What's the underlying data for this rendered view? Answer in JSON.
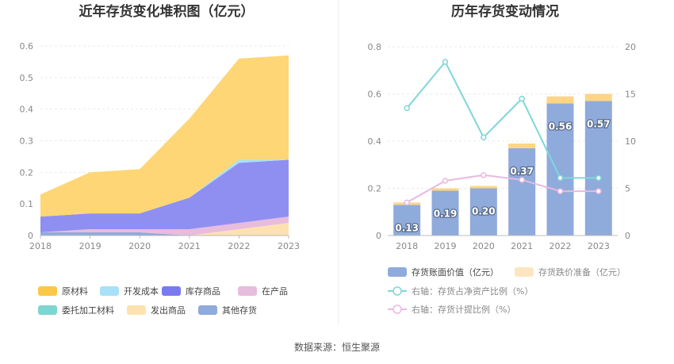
{
  "source": "数据来源：恒生聚源",
  "chart_data": [
    {
      "type": "area",
      "stacked": true,
      "title": "近年存货变化堆积图（亿元）",
      "x": [
        "2018",
        "2019",
        "2020",
        "2021",
        "2022",
        "2023"
      ],
      "ylim": [
        0,
        0.6
      ],
      "yticks": [
        "0",
        "0.1",
        "0.2",
        "0.3",
        "0.4",
        "0.5",
        "0.6"
      ],
      "series": [
        {
          "name": "其他存货",
          "color": "#8fabdc",
          "values": [
            0.01,
            0.01,
            0.01,
            0.0,
            0.0,
            0.0
          ]
        },
        {
          "name": "发出商品",
          "color": "#fde2b0",
          "values": [
            0.0,
            0.0,
            0.0,
            0.0,
            0.02,
            0.04
          ]
        },
        {
          "name": "委托加工材料",
          "color": "#7dd6d0",
          "values": [
            0.0,
            0.0,
            0.0,
            0.0,
            0.0,
            0.0
          ]
        },
        {
          "name": "在产品",
          "color": "#e8bcdd",
          "values": [
            0.0,
            0.01,
            0.01,
            0.02,
            0.02,
            0.02
          ]
        },
        {
          "name": "库存商品",
          "color": "#8f8ff2",
          "values": [
            0.05,
            0.05,
            0.05,
            0.1,
            0.19,
            0.18
          ]
        },
        {
          "name": "开发成本",
          "color": "#a8e0f8",
          "values": [
            0.0,
            0.0,
            0.0,
            0.0,
            0.01,
            0.0
          ]
        },
        {
          "name": "原材料",
          "color": "#fed676",
          "values": [
            0.07,
            0.13,
            0.14,
            0.25,
            0.32,
            0.33
          ]
        }
      ],
      "legend": [
        {
          "name": "原材料",
          "color": "#fbc846"
        },
        {
          "name": "开发成本",
          "color": "#a8e0f8"
        },
        {
          "name": "库存商品",
          "color": "#7a7af0"
        },
        {
          "name": "在产品",
          "color": "#e8bcdd"
        },
        {
          "name": "委托加工材料",
          "color": "#7dd6d0"
        },
        {
          "name": "发出商品",
          "color": "#fde2b0"
        },
        {
          "name": "其他存货",
          "color": "#8fabdc"
        }
      ]
    },
    {
      "type": "bar+line",
      "title": "历年存货变动情况",
      "x": [
        "2018",
        "2019",
        "2020",
        "2021",
        "2022",
        "2023"
      ],
      "ylim_left": [
        0,
        0.8
      ],
      "ylim_right": [
        0,
        20
      ],
      "yticks_left": [
        "0",
        "0.2",
        "0.4",
        "0.6",
        "0.8"
      ],
      "yticks_right": [
        "0",
        "5",
        "10",
        "15",
        "20"
      ],
      "bars": [
        {
          "name": "存货账面价值（亿元）",
          "color": "#8fabdc",
          "values": [
            0.13,
            0.19,
            0.2,
            0.37,
            0.56,
            0.57
          ],
          "labels": [
            "0.13",
            "0.19",
            "0.20",
            "0.37",
            "0.56",
            "0.57"
          ]
        },
        {
          "name": "存货跌价准备（亿元）",
          "color": "#fdd585",
          "values": [
            0.01,
            0.01,
            0.01,
            0.02,
            0.03,
            0.03
          ]
        }
      ],
      "lines": [
        {
          "name": "右轴：存货占净资产比例（%）",
          "color": "#7fd6d9",
          "values": [
            13.5,
            18.4,
            10.4,
            14.5,
            6.1,
            6.1
          ]
        },
        {
          "name": "右轴：存货计提比例（%）",
          "color": "#e9b9dd",
          "values": [
            3.5,
            5.8,
            6.4,
            5.9,
            4.7,
            4.7
          ]
        }
      ]
    }
  ]
}
